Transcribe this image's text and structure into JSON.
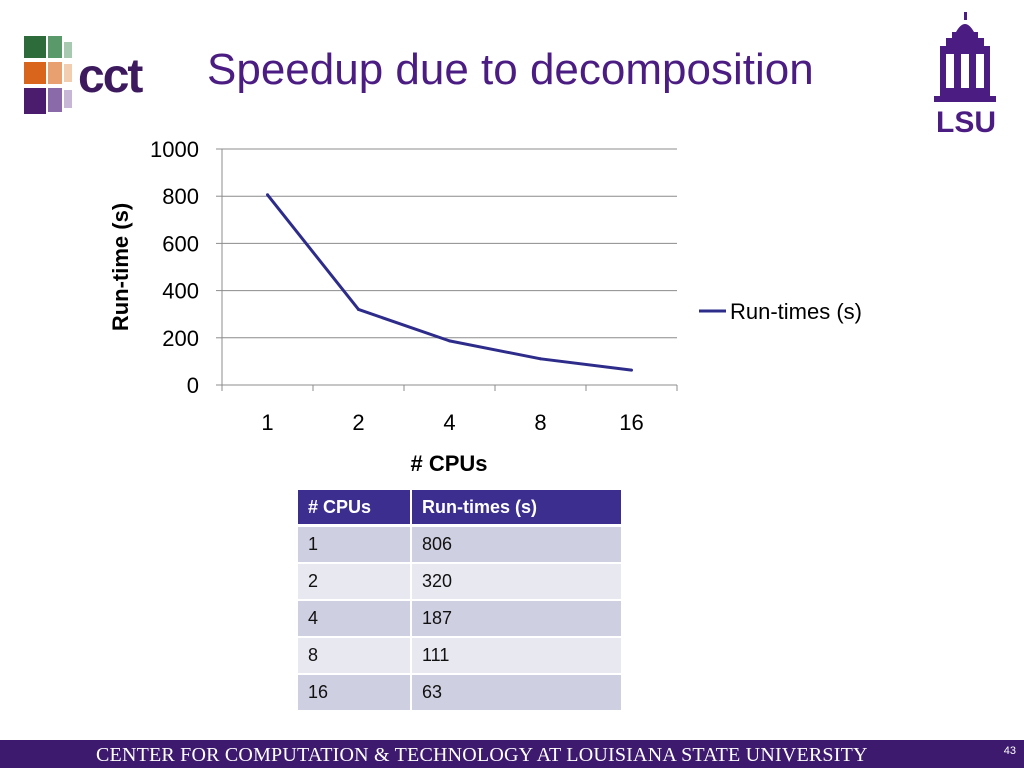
{
  "slide": {
    "title": "Speedup due to decomposition",
    "footer": "CENTER FOR COMPUTATION & TECHNOLOGY AT LOUISIANA STATE UNIVERSITY",
    "page_number": "43"
  },
  "logos": {
    "left": {
      "text": "cct",
      "icon": "cct-logo"
    },
    "right": {
      "text": "LSU",
      "icon": "lsu-tower-logo"
    }
  },
  "colors": {
    "title": "#4b1c82",
    "series": "#2e2c8a",
    "table_header": "#3b2e8f",
    "footer_bar": "#3d1a6e"
  },
  "chart_data": {
    "type": "line",
    "title": "",
    "xlabel": "# CPUs",
    "ylabel": "Run-time (s)",
    "categories": [
      "1",
      "2",
      "4",
      "8",
      "16"
    ],
    "series": [
      {
        "name": "Run-times (s)",
        "values": [
          806,
          320,
          187,
          111,
          63
        ]
      }
    ],
    "ylim": [
      0,
      1000
    ],
    "yticks": [
      "0",
      "200",
      "400",
      "600",
      "800",
      "1000"
    ],
    "grid": "horizontal",
    "legend": "right"
  },
  "table": {
    "headers": [
      "# CPUs",
      "Run-times (s)"
    ],
    "rows": [
      [
        "1",
        "806"
      ],
      [
        "2",
        "320"
      ],
      [
        "4",
        "187"
      ],
      [
        "8",
        "111"
      ],
      [
        "16",
        "63"
      ]
    ]
  }
}
